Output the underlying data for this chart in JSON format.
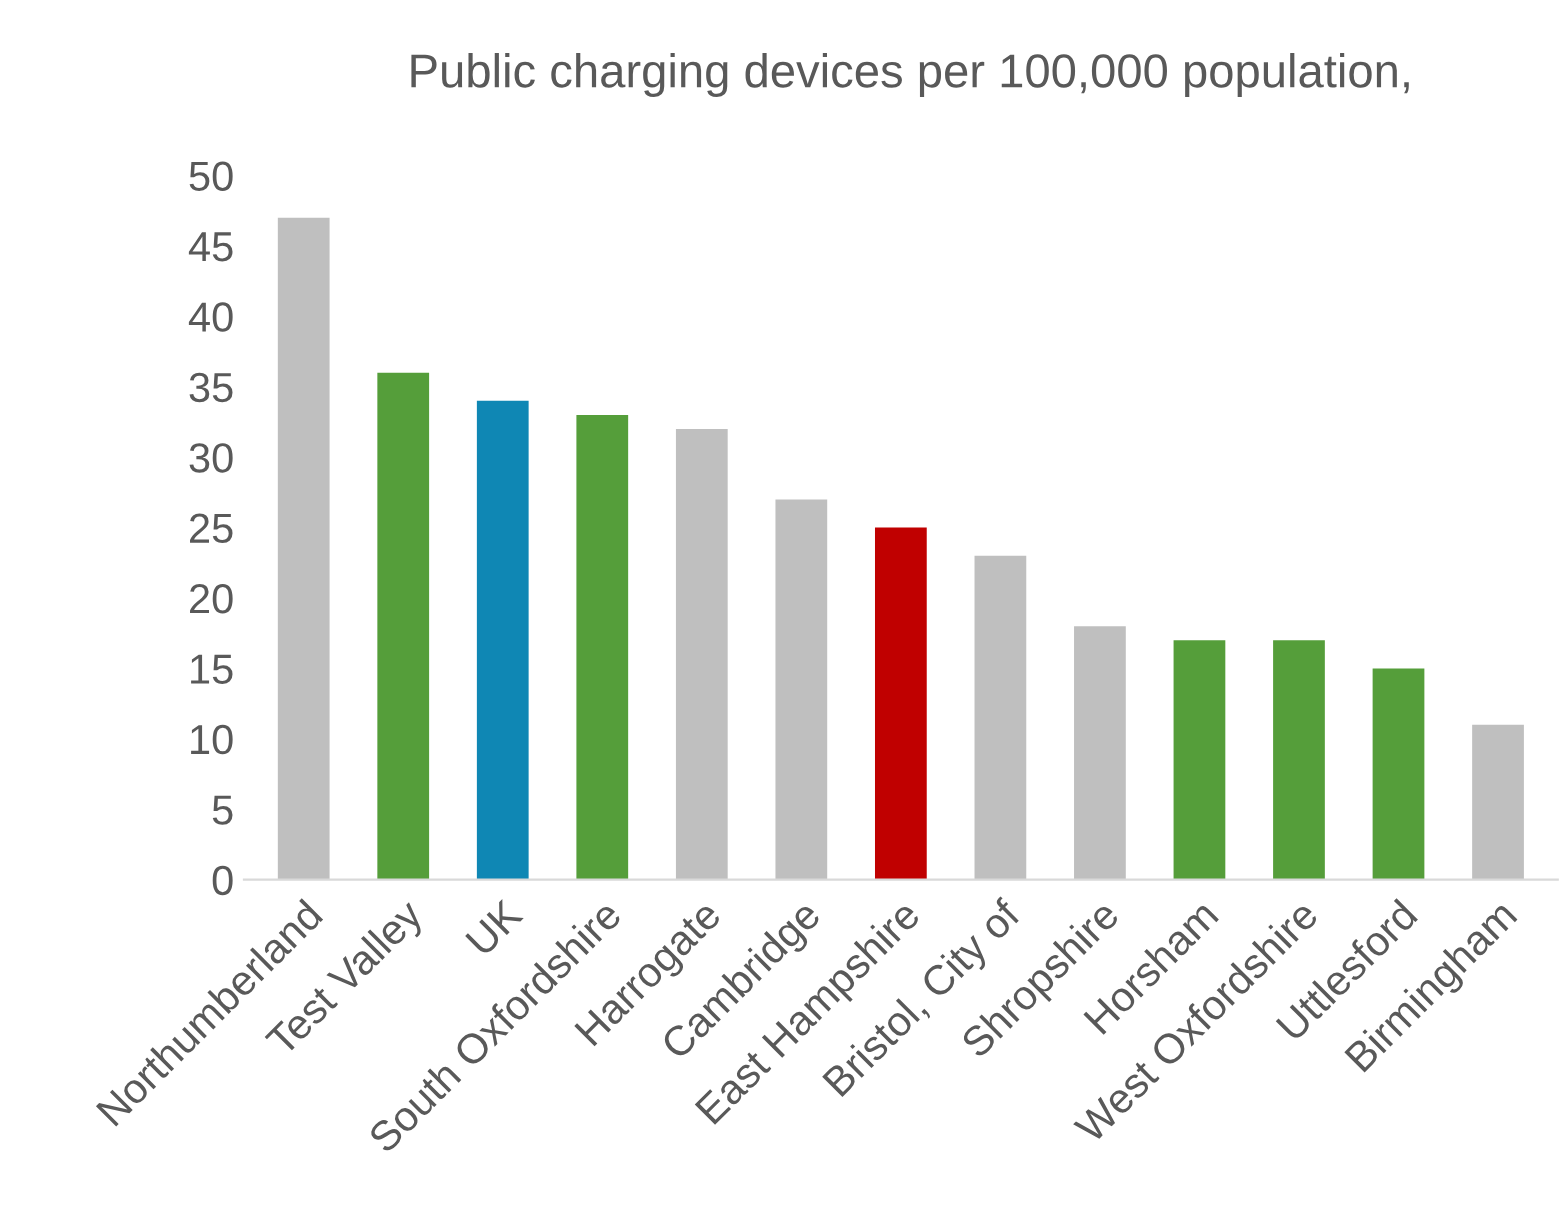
{
  "chart_data": {
    "type": "bar",
    "title": "Public charging devices per 100,000 population,",
    "categories": [
      "Northumberland",
      "Test Valley",
      "UK",
      "South Oxfordshire",
      "Harrogate",
      "Cambridge",
      "East Hampshire",
      "Bristol, City of",
      "Shropshire",
      "Horsham",
      "West Oxfordshire",
      "Uttlesford",
      "Birmingham"
    ],
    "values": [
      47,
      36,
      34,
      33,
      32,
      27,
      25,
      23,
      18,
      17,
      17,
      15,
      11
    ],
    "colors": [
      "#bfbfbf",
      "#559e3a",
      "#0f87b4",
      "#559e3a",
      "#bfbfbf",
      "#bfbfbf",
      "#c00000",
      "#bfbfbf",
      "#bfbfbf",
      "#559e3a",
      "#559e3a",
      "#559e3a",
      "#bfbfbf"
    ],
    "ylim": [
      0,
      50
    ],
    "yticks": [
      0,
      5,
      10,
      15,
      20,
      25,
      30,
      35,
      40,
      45,
      50
    ],
    "grid": false
  }
}
